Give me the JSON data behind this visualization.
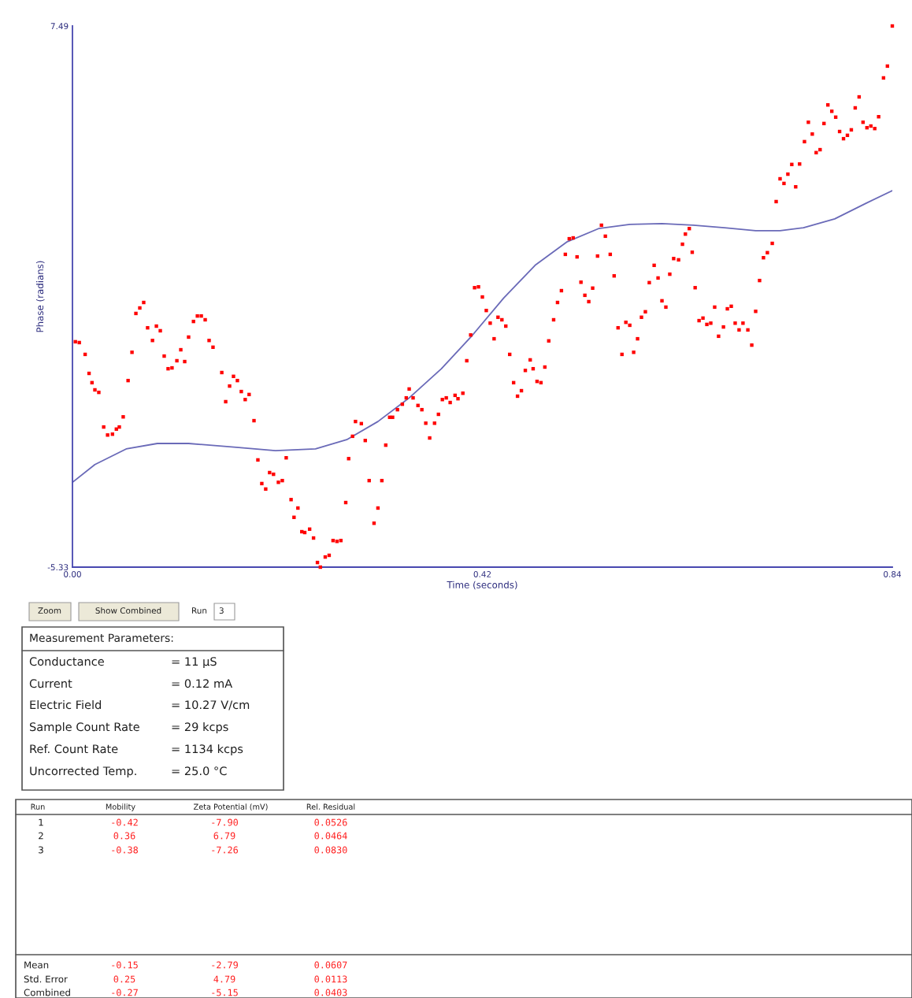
{
  "chart_data": {
    "type": "scatter",
    "xlabel": "Time (seconds)",
    "ylabel": "Phase (radians)",
    "xlim": [
      0,
      0.84
    ],
    "ylim": [
      -5.33,
      7.49
    ],
    "xticks": [
      {
        "value": 0,
        "label": "0.00"
      },
      {
        "value": 0.42,
        "label": "0.42"
      },
      {
        "value": 0.84,
        "label": "0.84"
      }
    ],
    "yticks": [
      {
        "value": -5.33,
        "label": "-5.33"
      },
      {
        "value": 7.49,
        "label": "7.49"
      }
    ],
    "grid": false,
    "series": [
      {
        "color": "#ff0000",
        "marker": "square",
        "x": [
          0.003,
          0.007,
          0.013,
          0.017,
          0.02,
          0.023,
          0.027,
          0.032,
          0.036,
          0.041,
          0.045,
          0.048,
          0.052,
          0.057,
          0.061,
          0.065,
          0.069,
          0.073,
          0.077,
          0.082,
          0.086,
          0.09,
          0.094,
          0.098,
          0.102,
          0.107,
          0.111,
          0.115,
          0.119,
          0.124,
          0.128,
          0.132,
          0.136,
          0.14,
          0.144,
          0.153,
          0.157,
          0.161,
          0.165,
          0.169,
          0.173,
          0.177,
          0.181,
          0.186,
          0.19,
          0.194,
          0.198,
          0.202,
          0.206,
          0.211,
          0.215,
          0.219,
          0.224,
          0.227,
          0.231,
          0.235,
          0.238,
          0.243,
          0.247,
          0.251,
          0.254,
          0.259,
          0.263,
          0.267,
          0.271,
          0.275,
          0.28,
          0.283,
          0.287,
          0.29,
          0.296,
          0.3,
          0.304,
          0.309,
          0.313,
          0.317,
          0.321,
          0.325,
          0.328,
          0.333,
          0.338,
          0.342,
          0.345,
          0.349,
          0.354,
          0.358,
          0.362,
          0.366,
          0.371,
          0.375,
          0.379,
          0.383,
          0.387,
          0.392,
          0.395,
          0.4,
          0.404,
          0.408,
          0.412,
          0.416,
          0.42,
          0.424,
          0.428,
          0.432,
          0.436,
          0.44,
          0.444,
          0.448,
          0.452,
          0.456,
          0.46,
          0.464,
          0.469,
          0.472,
          0.476,
          0.48,
          0.484,
          0.488,
          0.493,
          0.497,
          0.501,
          0.505,
          0.509,
          0.513,
          0.517,
          0.521,
          0.525,
          0.529,
          0.533,
          0.538,
          0.542,
          0.546,
          0.551,
          0.555,
          0.559,
          0.563,
          0.567,
          0.571,
          0.575,
          0.579,
          0.583,
          0.587,
          0.591,
          0.596,
          0.6,
          0.604,
          0.608,
          0.612,
          0.616,
          0.621,
          0.625,
          0.628,
          0.632,
          0.635,
          0.638,
          0.642,
          0.646,
          0.65,
          0.654,
          0.658,
          0.662,
          0.667,
          0.671,
          0.675,
          0.679,
          0.683,
          0.687,
          0.692,
          0.696,
          0.7,
          0.704,
          0.708,
          0.712,
          0.717,
          0.721,
          0.725,
          0.729,
          0.733,
          0.737,
          0.741,
          0.745,
          0.75,
          0.754,
          0.758,
          0.762,
          0.766,
          0.77,
          0.774,
          0.778,
          0.782,
          0.786,
          0.79,
          0.794,
          0.798,
          0.802,
          0.806,
          0.81,
          0.814,
          0.818,
          0.822,
          0.826,
          0.831,
          0.835,
          0.84
        ],
        "values": [
          0.01,
          -0.01,
          -0.29,
          -0.74,
          -0.96,
          -1.13,
          -1.19,
          -2.01,
          -2.2,
          -2.18,
          -2.06,
          -2.01,
          -1.77,
          -0.91,
          -0.24,
          0.68,
          0.81,
          0.94,
          0.34,
          0.04,
          0.38,
          0.27,
          -0.33,
          -0.63,
          -0.61,
          -0.44,
          -0.18,
          -0.46,
          0.12,
          0.49,
          0.62,
          0.62,
          0.53,
          0.04,
          -0.12,
          -0.72,
          -1.41,
          -1.04,
          -0.81,
          -0.91,
          -1.17,
          -1.36,
          -1.24,
          -1.86,
          -2.79,
          -3.35,
          -3.48,
          -3.09,
          -3.13,
          -3.32,
          -3.28,
          -2.74,
          -3.73,
          -4.15,
          -3.93,
          -4.49,
          -4.51,
          -4.43,
          -4.64,
          -5.22,
          -5.33,
          -5.09,
          -5.05,
          -4.7,
          -4.72,
          -4.7,
          -3.8,
          -2.76,
          -2.23,
          -1.88,
          -1.93,
          -2.33,
          -3.28,
          -4.29,
          -3.93,
          -3.28,
          -2.44,
          -1.78,
          -1.78,
          -1.6,
          -1.47,
          -1.32,
          -1.11,
          -1.32,
          -1.5,
          -1.6,
          -1.92,
          -2.27,
          -1.92,
          -1.71,
          -1.36,
          -1.32,
          -1.43,
          -1.26,
          -1.34,
          -1.21,
          -0.44,
          0.17,
          1.29,
          1.31,
          1.07,
          0.75,
          0.45,
          0.08,
          0.59,
          0.53,
          0.38,
          -0.29,
          -0.96,
          -1.28,
          -1.15,
          -0.67,
          -0.42,
          -0.63,
          -0.93,
          -0.96,
          -0.59,
          0.03,
          0.53,
          0.94,
          1.22,
          2.08,
          2.45,
          2.47,
          2.02,
          1.42,
          1.11,
          0.96,
          1.28,
          2.04,
          2.77,
          2.51,
          2.08,
          1.57,
          0.34,
          -0.29,
          0.47,
          0.4,
          -0.24,
          0.08,
          0.59,
          0.72,
          1.41,
          1.82,
          1.52,
          0.98,
          0.83,
          1.61,
          1.98,
          1.95,
          2.32,
          2.56,
          2.69,
          2.13,
          1.29,
          0.51,
          0.57,
          0.42,
          0.45,
          0.83,
          0.14,
          0.36,
          0.79,
          0.85,
          0.45,
          0.29,
          0.45,
          0.29,
          -0.07,
          0.73,
          1.46,
          2.0,
          2.12,
          2.34,
          3.33,
          3.87,
          3.76,
          3.98,
          4.21,
          3.68,
          4.22,
          4.75,
          5.21,
          4.93,
          4.49,
          4.56,
          5.18,
          5.62,
          5.47,
          5.33,
          4.99,
          4.82,
          4.9,
          5.03,
          5.55,
          5.81,
          5.21,
          5.08,
          5.12,
          5.06,
          5.34,
          6.26,
          6.54,
          7.49
        ]
      },
      {
        "type": "line",
        "color": "#6a6ab8",
        "line_style": "solid",
        "x": [
          0,
          0.023,
          0.055,
          0.087,
          0.119,
          0.168,
          0.208,
          0.249,
          0.281,
          0.313,
          0.345,
          0.378,
          0.41,
          0.442,
          0.474,
          0.507,
          0.539,
          0.571,
          0.604,
          0.636,
          0.668,
          0.7,
          0.725,
          0.749,
          0.781,
          0.813,
          0.84
        ],
        "values": [
          -3.32,
          -2.9,
          -2.53,
          -2.4,
          -2.4,
          -2.49,
          -2.57,
          -2.53,
          -2.31,
          -1.88,
          -1.32,
          -0.63,
          0.17,
          1.05,
          1.82,
          2.38,
          2.69,
          2.79,
          2.81,
          2.77,
          2.71,
          2.64,
          2.64,
          2.71,
          2.92,
          3.29,
          3.59
        ]
      }
    ],
    "annotations": [
      "Zoom",
      "Show Combined",
      "Run",
      "3",
      "Measurement Parameters:",
      "Conductance",
      "Current",
      "Electric Field",
      "Sample Count Rate",
      "Ref. Count Rate",
      "Uncorrected Temp.",
      "= 11 µS",
      "= 0.12 mA",
      "= 10.27 V/cm",
      "= 29 kcps",
      "= 1134 kcps",
      "= 25.0 °C",
      "Run",
      "Mobility",
      "Zeta Potential (mV)",
      "Rel. Residual",
      "1",
      "-0.42",
      "-7.90",
      "0.0526",
      "2",
      "0.36",
      "6.79",
      "0.0464",
      "3",
      "-0.38",
      "-7.26",
      "0.0830",
      "Mean",
      "-0.15",
      "-2.79",
      "0.0607",
      "Std. Error",
      "0.25",
      "4.79",
      "0.0113",
      "Combined",
      "-0.27",
      "-5.15",
      "0.0403"
    ]
  }
}
